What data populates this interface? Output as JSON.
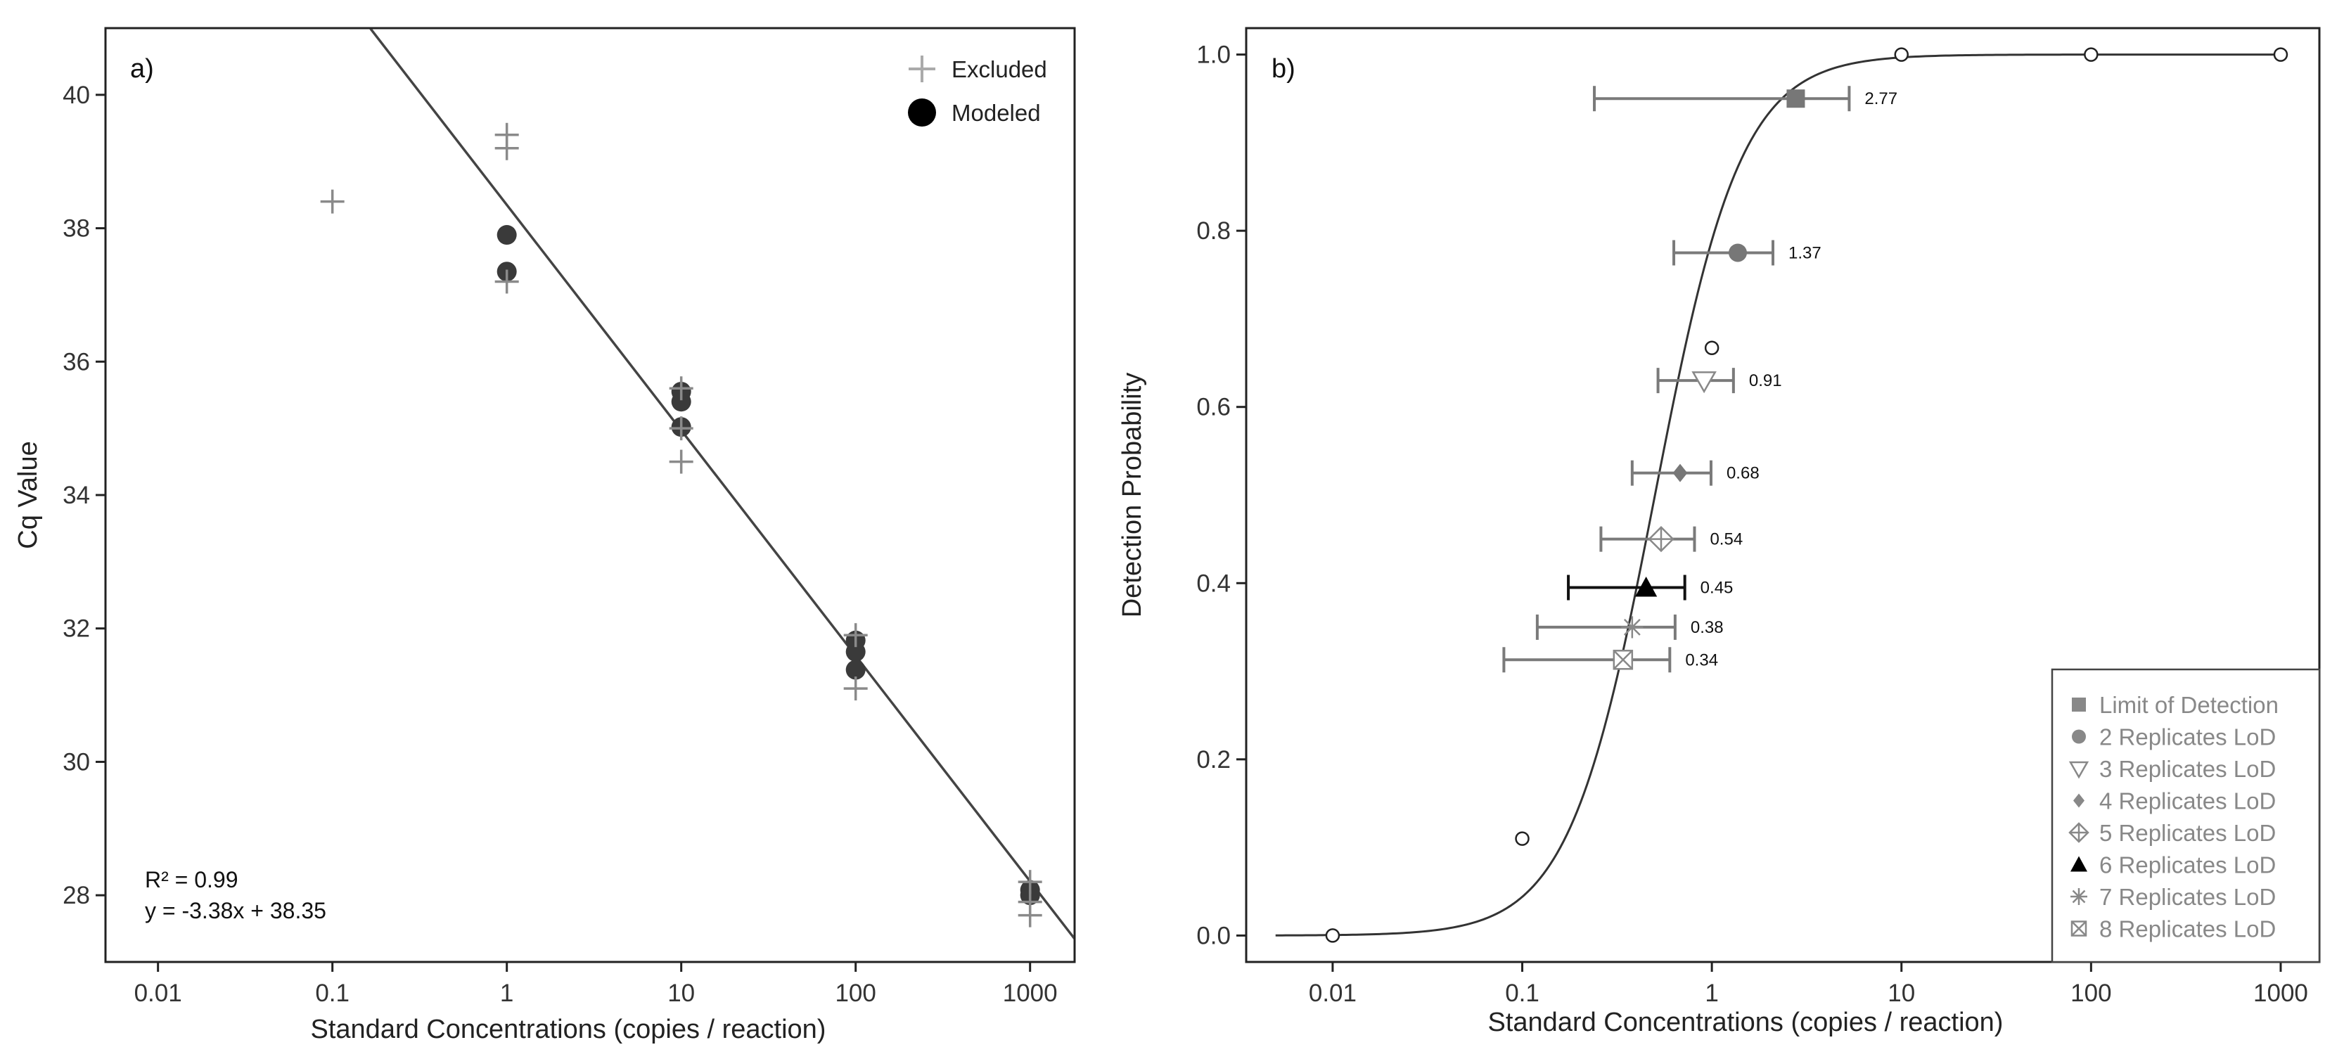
{
  "chart_data": [
    {
      "panel": "a)",
      "type": "scatter",
      "xscale": "log",
      "xlim": [
        0.005,
        1800
      ],
      "ylim": [
        27,
        41
      ],
      "xlabel": "Standard Concentrations (copies / reaction)",
      "ylabel": "Cq Value",
      "x_ticks": [
        "0.01",
        "0.1",
        "1",
        "10",
        "100",
        "1000"
      ],
      "y_ticks": [
        "28",
        "30",
        "32",
        "34",
        "36",
        "38",
        "40"
      ],
      "legend": [
        {
          "label": "Excluded",
          "marker": "plus",
          "color": "#aaaaaa"
        },
        {
          "label": "Modeled",
          "marker": "circle",
          "color": "#000000"
        }
      ],
      "fit_line": {
        "slope": -3.38,
        "intercept": 38.35
      },
      "annotation": {
        "r2": "R² = 0.99",
        "equation": "y = -3.38x + 38.35"
      },
      "series": [
        {
          "name": "Excluded",
          "points": [
            {
              "x": 0.1,
              "y": 38.4
            },
            {
              "x": 1,
              "y": 39.4
            },
            {
              "x": 1,
              "y": 39.2
            },
            {
              "x": 1,
              "y": 37.2
            },
            {
              "x": 10,
              "y": 34.5
            },
            {
              "x": 10,
              "y": 35.0
            },
            {
              "x": 10,
              "y": 35.6
            },
            {
              "x": 100,
              "y": 31.1
            },
            {
              "x": 100,
              "y": 31.9
            },
            {
              "x": 1000,
              "y": 27.7
            },
            {
              "x": 1000,
              "y": 27.9
            },
            {
              "x": 1000,
              "y": 28.2
            }
          ]
        },
        {
          "name": "Modeled",
          "points": [
            {
              "x": 1,
              "y": 37.9
            },
            {
              "x": 1,
              "y": 37.35
            },
            {
              "x": 10,
              "y": 35.55
            },
            {
              "x": 10,
              "y": 35.4
            },
            {
              "x": 10,
              "y": 35.02
            },
            {
              "x": 100,
              "y": 31.82
            },
            {
              "x": 100,
              "y": 31.65
            },
            {
              "x": 100,
              "y": 31.38
            },
            {
              "x": 1000,
              "y": 28.08
            },
            {
              "x": 1000,
              "y": 28.0
            }
          ]
        }
      ]
    },
    {
      "panel": "b)",
      "type": "line",
      "xscale": "log",
      "xlim": [
        0.0035,
        1600
      ],
      "ylim": [
        -0.03,
        1.03
      ],
      "xlabel": "Standard Concentrations (copies / reaction)",
      "ylabel": "Detection Probability",
      "x_ticks": [
        "0.01",
        "0.1",
        "1",
        "10",
        "100",
        "1000"
      ],
      "y_ticks": [
        "0.0",
        "0.2",
        "0.4",
        "0.6",
        "0.8",
        "1.0"
      ],
      "curve": {
        "type": "logistic-log10",
        "center_log10": -0.3,
        "slope": 4.4,
        "x_range": [
          0.005,
          1000
        ]
      },
      "observed_points": [
        {
          "x": 0.01,
          "y": 0.0
        },
        {
          "x": 0.1,
          "y": 0.11
        },
        {
          "x": 1,
          "y": 0.667
        },
        {
          "x": 10,
          "y": 1.0
        },
        {
          "x": 100,
          "y": 1.0
        },
        {
          "x": 1000,
          "y": 1.0
        }
      ],
      "lod_points": [
        {
          "label": "2.77",
          "x": 2.77,
          "y": 0.95,
          "lo": 0.24,
          "hi": 5.3,
          "marker": "square",
          "color": "#777777"
        },
        {
          "label": "1.37",
          "x": 1.37,
          "y": 0.775,
          "lo": 0.63,
          "hi": 2.1,
          "marker": "circle",
          "color": "#777777"
        },
        {
          "label": "0.91",
          "x": 0.91,
          "y": 0.63,
          "lo": 0.52,
          "hi": 1.3,
          "marker": "triangle-down-open",
          "color": "#888888"
        },
        {
          "label": "0.68",
          "x": 0.68,
          "y": 0.525,
          "lo": 0.38,
          "hi": 0.99,
          "marker": "diamond",
          "color": "#777777"
        },
        {
          "label": "0.54",
          "x": 0.54,
          "y": 0.45,
          "lo": 0.26,
          "hi": 0.81,
          "marker": "diamond-plus-open",
          "color": "#888888"
        },
        {
          "label": "0.45",
          "x": 0.45,
          "y": 0.395,
          "lo": 0.175,
          "hi": 0.72,
          "marker": "triangle-up",
          "color": "#000000"
        },
        {
          "label": "0.38",
          "x": 0.38,
          "y": 0.35,
          "lo": 0.12,
          "hi": 0.64,
          "marker": "asterisk",
          "color": "#888888"
        },
        {
          "label": "0.34",
          "x": 0.34,
          "y": 0.313,
          "lo": 0.08,
          "hi": 0.6,
          "marker": "square-x-open",
          "color": "#888888"
        }
      ],
      "legend": [
        {
          "label": "Limit of Detection",
          "marker": "square",
          "color": "#888888"
        },
        {
          "label": "2 Replicates LoD",
          "marker": "circle",
          "color": "#888888"
        },
        {
          "label": "3 Replicates LoD",
          "marker": "triangle-down-open",
          "color": "#888888"
        },
        {
          "label": "4 Replicates LoD",
          "marker": "diamond",
          "color": "#888888"
        },
        {
          "label": "5 Replicates LoD",
          "marker": "diamond-plus-open",
          "color": "#888888"
        },
        {
          "label": "6 Replicates LoD",
          "marker": "triangle-up",
          "color": "#000000"
        },
        {
          "label": "7 Replicates LoD",
          "marker": "asterisk",
          "color": "#888888"
        },
        {
          "label": "8 Replicates LoD",
          "marker": "square-x-open",
          "color": "#888888"
        }
      ]
    }
  ]
}
